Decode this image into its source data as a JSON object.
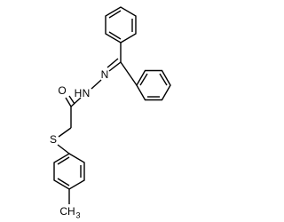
{
  "atoms": {
    "oxygen": "O",
    "imine_nitrogen": "N",
    "amide_hydrogen": "H",
    "amide_nitrogen": "N",
    "sulfur": "S",
    "methyl": "CH",
    "methyl_subscript": "3"
  }
}
